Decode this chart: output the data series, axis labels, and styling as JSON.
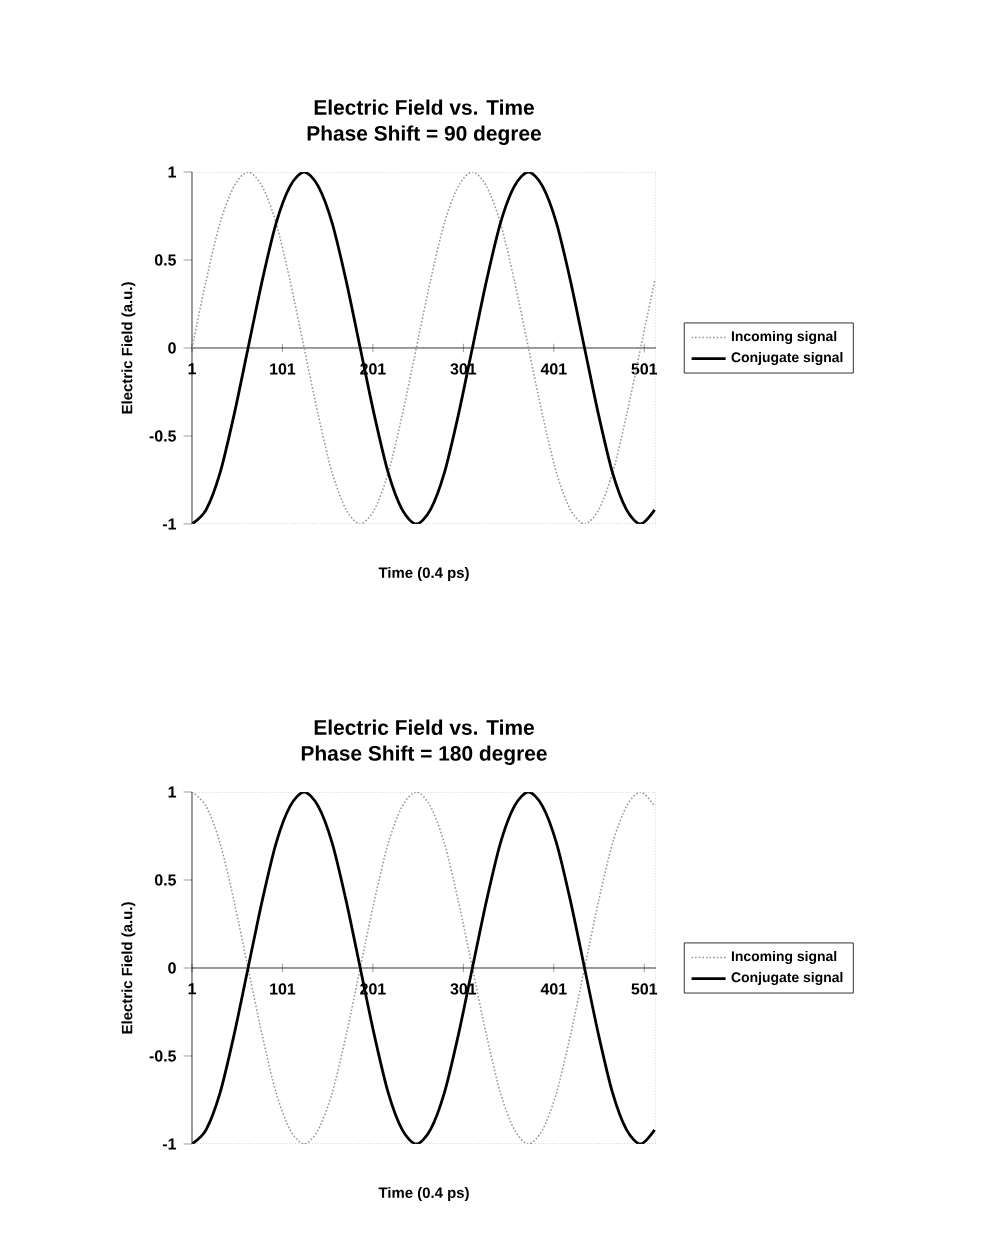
{
  "chart_data": [
    {
      "type": "line",
      "title": "Electric Field vs. Time",
      "subtitle": "Phase Shift = 90 degree",
      "xlabel": "Time (0.4 ps)",
      "ylabel": "Electric Field (a.u.)",
      "x": [
        1,
        16.5,
        32,
        47.5,
        63,
        78.5,
        94,
        109.5,
        125,
        140.5,
        156,
        171.5,
        187,
        202.5,
        218,
        233.5,
        249,
        264.5,
        280,
        295.5,
        311,
        326.5,
        342,
        357.5,
        373,
        388.5,
        404,
        419.5,
        435,
        450.5,
        466,
        481.5,
        497,
        512.5
      ],
      "xlim": [
        1,
        514
      ],
      "xticks": [
        1,
        101,
        201,
        301,
        401,
        501
      ],
      "ylim": [
        -1,
        1
      ],
      "yticks": [
        -1,
        -0.5,
        0,
        0.5,
        1
      ],
      "legend": "right",
      "grid": false,
      "series": [
        {
          "name": "Incoming signal",
          "color": "#999999",
          "line_style": "dotted",
          "values": [
            0,
            0.38,
            0.71,
            0.92,
            1,
            0.92,
            0.71,
            0.38,
            0,
            -0.38,
            -0.71,
            -0.92,
            -1,
            -0.92,
            -0.71,
            -0.38,
            0,
            0.38,
            0.71,
            0.92,
            1,
            0.92,
            0.71,
            0.38,
            0,
            -0.38,
            -0.71,
            -0.92,
            -1,
            -0.92,
            -0.71,
            -0.38,
            0,
            0.38
          ]
        },
        {
          "name": "Conjugate signal",
          "color": "#000000",
          "line_style": "solid",
          "values": [
            -1,
            -0.92,
            -0.71,
            -0.38,
            0,
            0.38,
            0.71,
            0.92,
            1,
            0.92,
            0.71,
            0.38,
            0,
            -0.38,
            -0.71,
            -0.92,
            -1,
            -0.92,
            -0.71,
            -0.38,
            0,
            0.38,
            0.71,
            0.92,
            1,
            0.92,
            0.71,
            0.38,
            0,
            -0.38,
            -0.71,
            -0.92,
            -1,
            -0.92
          ]
        }
      ]
    },
    {
      "type": "line",
      "title": "Electric Field vs. Time",
      "subtitle": "Phase Shift = 180 degree",
      "xlabel": "Time (0.4 ps)",
      "ylabel": "Electric Field (a.u.)",
      "x": [
        1,
        16.5,
        32,
        47.5,
        63,
        78.5,
        94,
        109.5,
        125,
        140.5,
        156,
        171.5,
        187,
        202.5,
        218,
        233.5,
        249,
        264.5,
        280,
        295.5,
        311,
        326.5,
        342,
        357.5,
        373,
        388.5,
        404,
        419.5,
        435,
        450.5,
        466,
        481.5,
        497,
        512.5
      ],
      "xlim": [
        1,
        514
      ],
      "xticks": [
        1,
        101,
        201,
        301,
        401,
        501
      ],
      "ylim": [
        -1,
        1
      ],
      "yticks": [
        -1,
        -0.5,
        0,
        0.5,
        1
      ],
      "legend": "right",
      "grid": false,
      "series": [
        {
          "name": "Incoming signal",
          "color": "#999999",
          "line_style": "dotted",
          "values": [
            1,
            0.92,
            0.71,
            0.38,
            0,
            -0.38,
            -0.71,
            -0.92,
            -1,
            -0.92,
            -0.71,
            -0.38,
            0,
            0.38,
            0.71,
            0.92,
            1,
            0.92,
            0.71,
            0.38,
            0,
            -0.38,
            -0.71,
            -0.92,
            -1,
            -0.92,
            -0.71,
            -0.38,
            0,
            0.38,
            0.71,
            0.92,
            1,
            0.92
          ]
        },
        {
          "name": "Conjugate signal",
          "color": "#000000",
          "line_style": "solid",
          "values": [
            -1,
            -0.92,
            -0.71,
            -0.38,
            0,
            0.38,
            0.71,
            0.92,
            1,
            0.92,
            0.71,
            0.38,
            0,
            -0.38,
            -0.71,
            -0.92,
            -1,
            -0.92,
            -0.71,
            -0.38,
            0,
            0.38,
            0.71,
            0.92,
            1,
            0.92,
            0.71,
            0.38,
            0,
            -0.38,
            -0.71,
            -0.92,
            -1,
            -0.92
          ]
        }
      ]
    }
  ]
}
